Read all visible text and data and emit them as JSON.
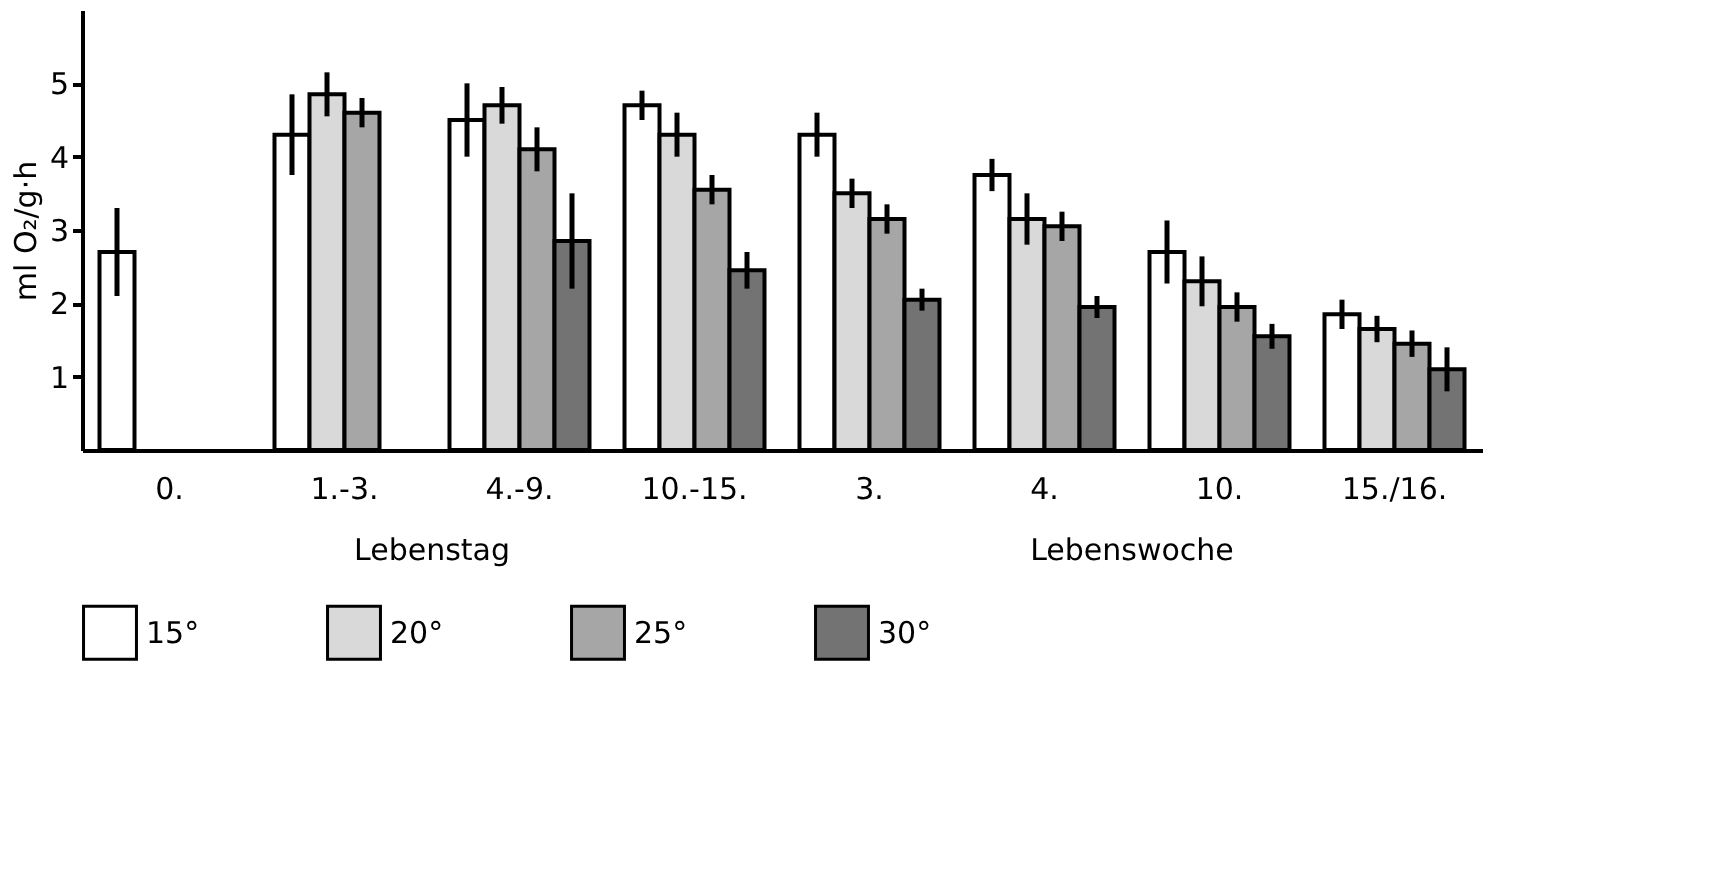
{
  "chart_data": {
    "type": "bar",
    "ylabel": "ml O₂/g·h",
    "categories": [
      "0.",
      "1.-3.",
      "4.-9.",
      "10.-15.",
      "3.",
      "4.",
      "10.",
      "15./16."
    ],
    "series": [
      {
        "name": "15°",
        "color": "#ffffff",
        "values": [
          2.7,
          4.3,
          4.5,
          4.7,
          4.3,
          3.75,
          2.7,
          1.85
        ],
        "errors": [
          0.6,
          0.55,
          0.5,
          0.2,
          0.3,
          0.22,
          0.43,
          0.2
        ]
      },
      {
        "name": "20°",
        "color": "#d9d9d9",
        "values": [
          null,
          4.85,
          4.7,
          4.3,
          3.5,
          3.15,
          2.3,
          1.65
        ],
        "errors": [
          null,
          0.3,
          0.25,
          0.3,
          0.2,
          0.35,
          0.34,
          0.18
        ]
      },
      {
        "name": "25°",
        "color": "#a6a6a6",
        "values": [
          null,
          4.6,
          4.1,
          3.55,
          3.15,
          3.05,
          1.95,
          1.45
        ],
        "errors": [
          null,
          0.2,
          0.3,
          0.2,
          0.2,
          0.2,
          0.2,
          0.18
        ]
      },
      {
        "name": "30°",
        "color": "#737373",
        "values": [
          null,
          null,
          2.85,
          2.45,
          2.05,
          1.95,
          1.55,
          1.1
        ],
        "errors": [
          null,
          null,
          0.65,
          0.25,
          0.15,
          0.15,
          0.17,
          0.3
        ]
      }
    ],
    "ylim": [
      0,
      6
    ],
    "yticks": [
      1,
      2,
      3,
      4,
      5
    ],
    "grid": false,
    "legend": "bottom",
    "annotations": [
      "Lebenstag",
      "Lebenswoche"
    ]
  }
}
